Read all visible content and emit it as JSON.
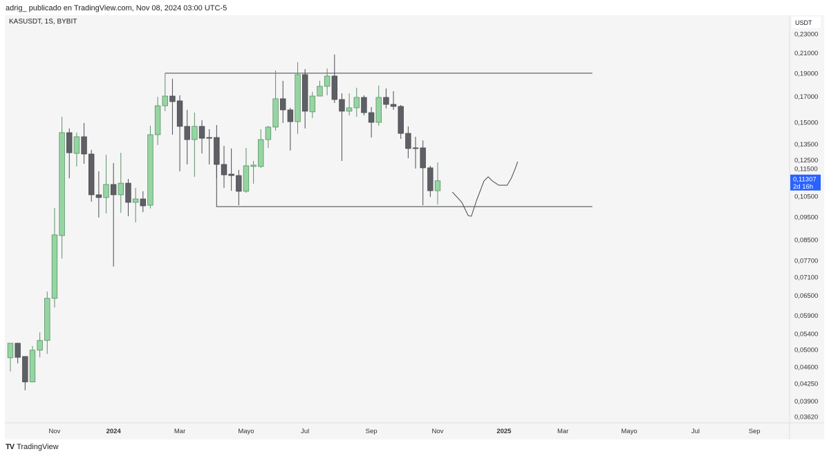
{
  "header": {
    "attribution": "adrig_ publicado en TradingView.com, Nov 08, 2024 03:00 UTC-5"
  },
  "footer": {
    "brand": "TradingView"
  },
  "colors": {
    "up_fill": "#95d5a2",
    "up_border": "#5b8f66",
    "down_fill": "#5f6066",
    "down_border": "#4a4b50",
    "background": "#f5f5f5",
    "last_price_label": "#2962ff",
    "drawing": "#555555"
  },
  "chart_data": {
    "type": "candlestick",
    "title": "KASUSDT, 1S, BYBIT",
    "currency": "USDT",
    "interval": "1W",
    "first_bar": "2023-09-25",
    "y_scale": "log",
    "ylim": [
      0.0345,
      0.24
    ],
    "grid": false,
    "candles": [
      [
        0.0481,
        0.0516,
        0.045,
        0.0516
      ],
      [
        0.0516,
        0.0517,
        0.0468,
        0.0482
      ],
      [
        0.0484,
        0.0484,
        0.0411,
        0.0428
      ],
      [
        0.0428,
        0.0509,
        0.0428,
        0.0499
      ],
      [
        0.0499,
        0.0544,
        0.0482,
        0.0523
      ],
      [
        0.0523,
        0.0662,
        0.049,
        0.0641
      ],
      [
        0.0641,
        0.0992,
        0.0613,
        0.0871
      ],
      [
        0.0868,
        0.1541,
        0.0777,
        0.1427
      ],
      [
        0.1427,
        0.1456,
        0.1145,
        0.1295
      ],
      [
        0.1291,
        0.1427,
        0.1212,
        0.1399
      ],
      [
        0.1399,
        0.1495,
        0.1228,
        0.1287
      ],
      [
        0.1287,
        0.1313,
        0.1022,
        0.1057
      ],
      [
        0.1057,
        0.1184,
        0.0947,
        0.1043
      ],
      [
        0.1043,
        0.1282,
        0.0966,
        0.1111
      ],
      [
        0.1111,
        0.1232,
        0.0747,
        0.1057
      ],
      [
        0.1057,
        0.1295,
        0.0969,
        0.1118
      ],
      [
        0.1118,
        0.1141,
        0.0953,
        0.1019
      ],
      [
        0.1019,
        0.1093,
        0.0925,
        0.1036
      ],
      [
        0.1036,
        0.1075,
        0.0972,
        0.1002
      ],
      [
        0.1005,
        0.1475,
        0.0989,
        0.1413
      ],
      [
        0.1413,
        0.1697,
        0.1344,
        0.1625
      ],
      [
        0.1625,
        0.1902,
        0.1583,
        0.1703
      ],
      [
        0.1703,
        0.1851,
        0.1413,
        0.1658
      ],
      [
        0.1664,
        0.1709,
        0.1184,
        0.1471
      ],
      [
        0.1471,
        0.1593,
        0.1224,
        0.138
      ],
      [
        0.138,
        0.1572,
        0.1153,
        0.1471
      ],
      [
        0.1471,
        0.1515,
        0.1291,
        0.1389
      ],
      [
        0.1394,
        0.1451,
        0.1224,
        0.1389
      ],
      [
        0.1394,
        0.148,
        0.1145,
        0.1224
      ],
      [
        0.1224,
        0.1339,
        0.1093,
        0.1164
      ],
      [
        0.1168,
        0.1322,
        0.1078,
        0.116
      ],
      [
        0.116,
        0.1192,
        0.1005,
        0.1075
      ],
      [
        0.1075,
        0.1326,
        0.1067,
        0.1216
      ],
      [
        0.1212,
        0.1245,
        0.1115,
        0.122
      ],
      [
        0.1212,
        0.1451,
        0.1204,
        0.138
      ],
      [
        0.138,
        0.1475,
        0.1326,
        0.1466
      ],
      [
        0.1466,
        0.1927,
        0.1441,
        0.1681
      ],
      [
        0.1681,
        0.1833,
        0.1495,
        0.1593
      ],
      [
        0.1593,
        0.1609,
        0.1309,
        0.1505
      ],
      [
        0.1505,
        0.2006,
        0.1418,
        0.1889
      ],
      [
        0.1889,
        0.194,
        0.1456,
        0.1583
      ],
      [
        0.1578,
        0.1738,
        0.1531,
        0.1703
      ],
      [
        0.1703,
        0.1833,
        0.1703,
        0.1785
      ],
      [
        0.1785,
        0.1946,
        0.1709,
        0.1876
      ],
      [
        0.1876,
        0.2081,
        0.1647,
        0.1675
      ],
      [
        0.1675,
        0.1726,
        0.1245,
        0.1583
      ],
      [
        0.1583,
        0.1726,
        0.1551,
        0.1609
      ],
      [
        0.1609,
        0.1773,
        0.1541,
        0.1692
      ],
      [
        0.1692,
        0.1709,
        0.1551,
        0.1572
      ],
      [
        0.1572,
        0.1615,
        0.1394,
        0.15
      ],
      [
        0.15,
        0.1791,
        0.1475,
        0.1692
      ],
      [
        0.1692,
        0.1767,
        0.1604,
        0.1636
      ],
      [
        0.1636,
        0.1743,
        0.1593,
        0.162
      ],
      [
        0.162,
        0.1631,
        0.1385,
        0.1422
      ],
      [
        0.1422,
        0.1471,
        0.1261,
        0.1322
      ],
      [
        0.1326,
        0.1399,
        0.12,
        0.1322
      ],
      [
        0.1326,
        0.1375,
        0.1005,
        0.1204
      ],
      [
        0.1204,
        0.1216,
        0.1046,
        0.1078
      ],
      [
        0.1078,
        0.1236,
        0.1009,
        0.1131
      ]
    ],
    "candle_fields": [
      "open",
      "high",
      "low",
      "close"
    ],
    "y_ticks": [
      "0,23000",
      "0,21000",
      "0,19000",
      "0,17000",
      "0,15000",
      "0,13500",
      "0,12500",
      "0,11500",
      "0,10500",
      "0,09500",
      "0,08500",
      "0,07700",
      "0,07100",
      "0,06500",
      "0,05900",
      "0,05400",
      "0,05000",
      "0,04600",
      "0,04250",
      "0,03900",
      "0,03620"
    ],
    "x_ticks": [
      {
        "label": "Nov",
        "date": "2023-11-06",
        "bold": false
      },
      {
        "label": "2024",
        "date": "2024-01-01",
        "bold": true
      },
      {
        "label": "Mar",
        "date": "2024-03-04",
        "bold": false
      },
      {
        "label": "Mayo",
        "date": "2024-05-06",
        "bold": false
      },
      {
        "label": "Jul",
        "date": "2024-07-01",
        "bold": false
      },
      {
        "label": "Sep",
        "date": "2024-09-02",
        "bold": false
      },
      {
        "label": "Nov",
        "date": "2024-11-04",
        "bold": false
      },
      {
        "label": "2025",
        "date": "2025-01-06",
        "bold": true
      },
      {
        "label": "Mar",
        "date": "2025-03-03",
        "bold": false
      },
      {
        "label": "Mayo",
        "date": "2025-05-05",
        "bold": false
      },
      {
        "label": "Jul",
        "date": "2025-07-07",
        "bold": false
      },
      {
        "label": "Sep",
        "date": "2025-09-01",
        "bold": false
      }
    ],
    "last_price": {
      "value": "0,11307",
      "countdown": "2d 16h",
      "price": 0.11307
    },
    "drawings": [
      {
        "name": "range-top-line",
        "points": [
          [
            "2024-02-19",
            0.1902
          ],
          [
            "2025-03-31",
            0.1902
          ]
        ]
      },
      {
        "name": "range-bottom-line",
        "points": [
          [
            "2024-04-08",
            0.1224
          ],
          [
            "2024-04-08",
            0.0998
          ],
          [
            "2025-03-31",
            0.0998
          ]
        ]
      },
      {
        "name": "projection-path",
        "points": [
          [
            "2024-11-18",
            0.1071
          ],
          [
            "2024-11-27",
            0.1019
          ],
          [
            "2024-12-03",
            0.0956
          ],
          [
            "2024-12-06",
            0.0953
          ],
          [
            "2024-12-11",
            0.1029
          ],
          [
            "2024-12-18",
            0.113
          ],
          [
            "2024-12-22",
            0.1153
          ],
          [
            "2024-12-26",
            0.113
          ],
          [
            "2025-01-01",
            0.1107
          ],
          [
            "2025-01-09",
            0.1107
          ],
          [
            "2025-01-13",
            0.1145
          ],
          [
            "2025-01-17",
            0.1204
          ],
          [
            "2025-01-19",
            0.1241
          ]
        ]
      }
    ]
  }
}
